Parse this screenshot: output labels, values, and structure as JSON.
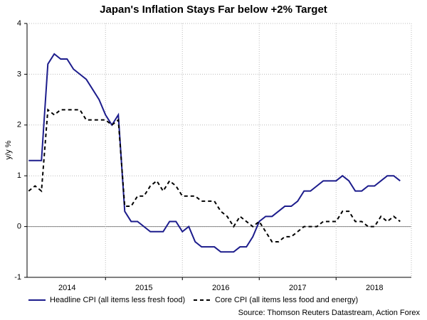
{
  "chart_data": {
    "type": "line",
    "title": "Japan's Inflation Stays Far below +2% Target",
    "y_label": "y/y %",
    "source": "Source: Thomson Reuters Datastream, Action Forex",
    "categories": [
      null,
      null,
      null,
      null,
      null,
      null,
      "2014",
      null,
      null,
      null,
      null,
      null,
      null,
      null,
      null,
      null,
      null,
      null,
      "2015",
      null,
      null,
      null,
      null,
      null,
      null,
      null,
      null,
      null,
      null,
      null,
      "2016",
      null,
      null,
      null,
      null,
      null,
      null,
      null,
      null,
      null,
      null,
      null,
      "2017",
      null,
      null,
      null,
      null,
      null,
      null,
      null,
      null,
      null,
      null,
      null,
      "2018",
      null,
      null,
      null,
      null
    ],
    "series": [
      {
        "name": "Headline CPI (all items less fresh food)",
        "color": "#1c1c8c",
        "dash": false,
        "values": [
          1.3,
          1.3,
          1.3,
          3.2,
          3.4,
          3.3,
          3.3,
          3.1,
          3.0,
          2.9,
          2.7,
          2.5,
          2.2,
          2.0,
          2.2,
          0.3,
          0.1,
          0.1,
          0.0,
          -0.1,
          -0.1,
          -0.1,
          0.1,
          0.1,
          -0.1,
          0.0,
          -0.3,
          -0.4,
          -0.4,
          -0.4,
          -0.5,
          -0.5,
          -0.5,
          -0.4,
          -0.4,
          -0.2,
          0.1,
          0.2,
          0.2,
          0.3,
          0.4,
          0.4,
          0.5,
          0.7,
          0.7,
          0.8,
          0.9,
          0.9,
          0.9,
          1.0,
          0.9,
          0.7,
          0.7,
          0.8,
          0.8,
          0.9,
          1.0,
          1.0,
          0.9
        ]
      },
      {
        "name": "Core CPI (all items less food and energy)",
        "color": "#000000",
        "dash": true,
        "values": [
          0.7,
          0.8,
          0.7,
          2.3,
          2.2,
          2.3,
          2.3,
          2.3,
          2.3,
          2.1,
          2.1,
          2.1,
          2.1,
          2.0,
          2.1,
          0.4,
          0.4,
          0.6,
          0.6,
          0.8,
          0.9,
          0.7,
          0.9,
          0.8,
          0.6,
          0.6,
          0.6,
          0.5,
          0.5,
          0.5,
          0.3,
          0.2,
          0.0,
          0.2,
          0.1,
          0.0,
          0.1,
          -0.1,
          -0.3,
          -0.3,
          -0.2,
          -0.2,
          -0.1,
          0.0,
          0.0,
          0.0,
          0.1,
          0.1,
          0.1,
          0.3,
          0.3,
          0.1,
          0.1,
          0.0,
          0.0,
          0.2,
          0.1,
          0.2,
          0.1
        ]
      }
    ],
    "ylim": [
      -1,
      4
    ],
    "yticks": [
      -1,
      0,
      1,
      2,
      3,
      4
    ],
    "grid": true,
    "legend": "bottom"
  }
}
